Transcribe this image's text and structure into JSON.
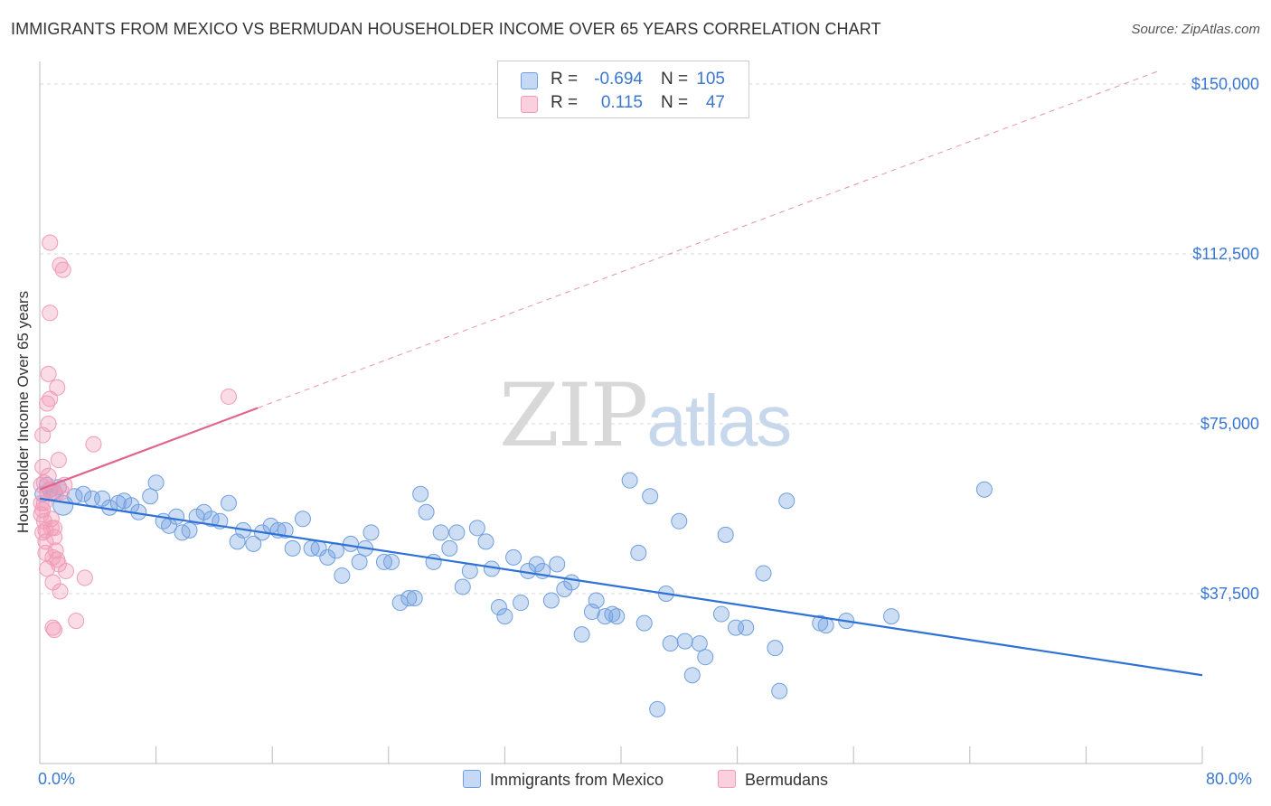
{
  "header": {
    "title": "IMMIGRANTS FROM MEXICO VS BERMUDAN HOUSEHOLDER INCOME OVER 65 YEARS CORRELATION CHART",
    "source": "Source: ZipAtlas.com"
  },
  "watermark": {
    "zip": "ZIP",
    "atlas": "atlas"
  },
  "legend": {
    "rows": [
      {
        "r_label": "R =",
        "r_value": "-0.694",
        "n_label": "N =",
        "n_value": "105"
      },
      {
        "r_label": "R =",
        "r_value": "0.115",
        "n_label": "N =",
        "n_value": "47"
      }
    ]
  },
  "colors": {
    "blue": "#6f9fe0",
    "blue_line": "#2f72d6",
    "pink": "#f29bb6",
    "pink_line": "#e0648e",
    "axis_text": "#3a78d0",
    "grid": "#d9d9d9"
  },
  "chart_data": {
    "type": "scatter",
    "title": "IMMIGRANTS FROM MEXICO VS BERMUDAN HOUSEHOLDER INCOME OVER 65 YEARS CORRELATION CHART",
    "xlabel": "",
    "ylabel": "Householder Income Over 65 years",
    "xlim": [
      0,
      80
    ],
    "ylim": [
      0,
      153000
    ],
    "x_tick_labels": [
      "0.0%",
      "80.0%"
    ],
    "y_ticks": [
      37500,
      75000,
      112500,
      150000
    ],
    "y_tick_labels": [
      "$37,500",
      "$75,000",
      "$112,500",
      "$150,000"
    ],
    "grid": true,
    "legend_position": "bottom",
    "series": [
      {
        "name": "Immigrants from Mexico",
        "color": "#6f9fe0",
        "trend": {
          "x": [
            0,
            80
          ],
          "y": [
            58500,
            19500
          ],
          "style": "solid"
        },
        "points": [
          [
            0.2,
            59500
          ],
          [
            0.5,
            61500
          ],
          [
            0.7,
            60500
          ],
          [
            1.0,
            60000
          ],
          [
            1.3,
            61000
          ],
          [
            1.6,
            57000
          ],
          [
            2.4,
            59000
          ],
          [
            3.0,
            59500
          ],
          [
            3.6,
            58500
          ],
          [
            4.3,
            58500
          ],
          [
            4.8,
            56500
          ],
          [
            5.4,
            57500
          ],
          [
            5.8,
            58000
          ],
          [
            6.3,
            57000
          ],
          [
            6.8,
            55500
          ],
          [
            7.6,
            59000
          ],
          [
            8.0,
            62000
          ],
          [
            8.5,
            53500
          ],
          [
            8.9,
            52500
          ],
          [
            9.4,
            54500
          ],
          [
            9.8,
            51000
          ],
          [
            10.3,
            51500
          ],
          [
            10.8,
            54500
          ],
          [
            11.3,
            55500
          ],
          [
            11.8,
            54000
          ],
          [
            12.4,
            53500
          ],
          [
            13.0,
            57500
          ],
          [
            13.6,
            49000
          ],
          [
            14.0,
            51500
          ],
          [
            14.7,
            48500
          ],
          [
            15.3,
            51000
          ],
          [
            15.9,
            52500
          ],
          [
            16.4,
            51500
          ],
          [
            16.9,
            51500
          ],
          [
            17.4,
            47500
          ],
          [
            18.1,
            54000
          ],
          [
            18.7,
            47500
          ],
          [
            19.2,
            47500
          ],
          [
            19.8,
            45500
          ],
          [
            20.4,
            47000
          ],
          [
            20.8,
            41500
          ],
          [
            21.4,
            48500
          ],
          [
            22.0,
            44500
          ],
          [
            22.4,
            47500
          ],
          [
            22.8,
            51000
          ],
          [
            23.7,
            44500
          ],
          [
            24.2,
            44500
          ],
          [
            24.8,
            35500
          ],
          [
            25.4,
            36500
          ],
          [
            25.8,
            36500
          ],
          [
            26.2,
            59500
          ],
          [
            26.6,
            55500
          ],
          [
            27.1,
            44500
          ],
          [
            27.6,
            51000
          ],
          [
            28.2,
            47500
          ],
          [
            28.7,
            51000
          ],
          [
            29.1,
            39000
          ],
          [
            29.6,
            42500
          ],
          [
            30.1,
            52000
          ],
          [
            30.7,
            49000
          ],
          [
            31.1,
            43000
          ],
          [
            31.6,
            34500
          ],
          [
            32.0,
            32500
          ],
          [
            32.6,
            45500
          ],
          [
            33.1,
            35500
          ],
          [
            33.6,
            42500
          ],
          [
            34.2,
            44000
          ],
          [
            34.6,
            42500
          ],
          [
            35.2,
            36000
          ],
          [
            35.6,
            44000
          ],
          [
            36.1,
            38500
          ],
          [
            36.6,
            40000
          ],
          [
            37.3,
            28500
          ],
          [
            38.0,
            33500
          ],
          [
            38.3,
            36000
          ],
          [
            38.9,
            32500
          ],
          [
            39.4,
            33000
          ],
          [
            39.7,
            32500
          ],
          [
            40.6,
            62500
          ],
          [
            41.2,
            46500
          ],
          [
            41.6,
            31000
          ],
          [
            42.0,
            59000
          ],
          [
            43.1,
            37500
          ],
          [
            43.4,
            26500
          ],
          [
            44.0,
            53500
          ],
          [
            44.4,
            27000
          ],
          [
            44.9,
            19500
          ],
          [
            45.4,
            26500
          ],
          [
            45.8,
            23500
          ],
          [
            46.9,
            33000
          ],
          [
            47.2,
            50500
          ],
          [
            47.9,
            30000
          ],
          [
            48.6,
            30000
          ],
          [
            49.8,
            42000
          ],
          [
            50.6,
            25500
          ],
          [
            50.9,
            16000
          ],
          [
            51.4,
            58000
          ],
          [
            53.7,
            31000
          ],
          [
            54.1,
            30500
          ],
          [
            55.5,
            31500
          ],
          [
            58.6,
            32500
          ],
          [
            65.0,
            60500
          ],
          [
            42.5,
            12000
          ]
        ]
      },
      {
        "name": "Bermudans",
        "color": "#f29bb6",
        "trend": {
          "x": [
            0,
            15
          ],
          "y": [
            60500,
            78500
          ],
          "style": "solid",
          "dashed_to": {
            "x": [
              15,
              80
            ],
            "y": [
              78500,
              156500
            ]
          }
        },
        "points": [
          [
            0.1,
            61500
          ],
          [
            0.1,
            57500
          ],
          [
            0.1,
            55000
          ],
          [
            0.2,
            51000
          ],
          [
            0.2,
            56000
          ],
          [
            0.2,
            65500
          ],
          [
            0.2,
            72500
          ],
          [
            0.3,
            62000
          ],
          [
            0.3,
            57500
          ],
          [
            0.3,
            53500
          ],
          [
            0.4,
            51500
          ],
          [
            0.4,
            49000
          ],
          [
            0.4,
            46500
          ],
          [
            0.5,
            43000
          ],
          [
            0.5,
            60000
          ],
          [
            0.5,
            79500
          ],
          [
            0.6,
            86000
          ],
          [
            0.6,
            75000
          ],
          [
            0.6,
            63500
          ],
          [
            0.7,
            99500
          ],
          [
            0.7,
            115000
          ],
          [
            0.7,
            80500
          ],
          [
            0.8,
            60500
          ],
          [
            0.8,
            54000
          ],
          [
            0.8,
            52000
          ],
          [
            0.9,
            40000
          ],
          [
            0.9,
            30000
          ],
          [
            1.0,
            29500
          ],
          [
            1.0,
            52000
          ],
          [
            1.0,
            50000
          ],
          [
            1.1,
            59500
          ],
          [
            1.1,
            47000
          ],
          [
            1.2,
            45000
          ],
          [
            1.2,
            83000
          ],
          [
            1.3,
            67000
          ],
          [
            1.3,
            44000
          ],
          [
            1.4,
            110000
          ],
          [
            1.4,
            38000
          ],
          [
            1.5,
            60000
          ],
          [
            1.6,
            109000
          ],
          [
            1.7,
            61500
          ],
          [
            1.8,
            42500
          ],
          [
            3.1,
            41000
          ],
          [
            3.7,
            70500
          ],
          [
            2.5,
            31500
          ],
          [
            13.0,
            81000
          ],
          [
            0.9,
            45500
          ]
        ]
      }
    ]
  },
  "bottom_legend": {
    "items": [
      "Immigrants from Mexico",
      "Bermudans"
    ]
  }
}
